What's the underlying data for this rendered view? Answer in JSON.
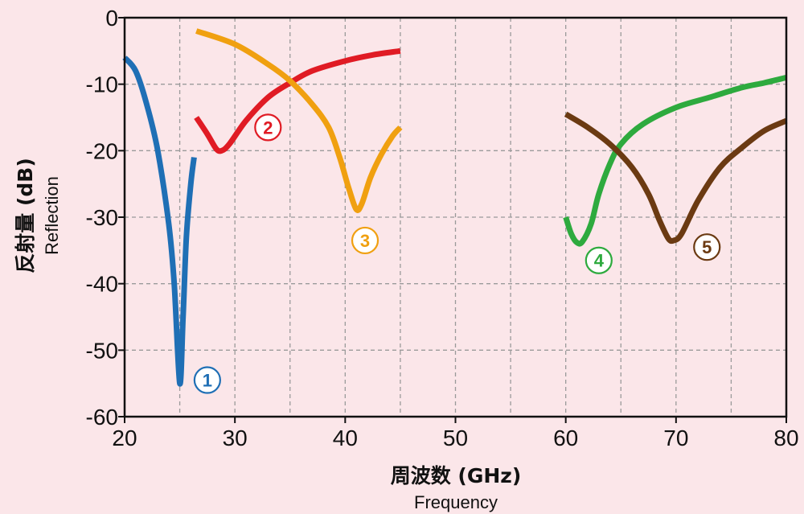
{
  "chart_data": {
    "type": "line",
    "title": "",
    "xlabel": "周波数 (GHz)",
    "xlabel_sub": "Frequency",
    "ylabel": "反射量 (dB)",
    "ylabel_sub": "Reflection",
    "xlim": [
      20,
      80
    ],
    "ylim": [
      -60,
      0
    ],
    "x_ticks": [
      20,
      30,
      40,
      50,
      60,
      70,
      80
    ],
    "y_ticks": [
      0,
      -10,
      -20,
      -30,
      -40,
      -50,
      -60
    ],
    "grid": true,
    "grid_style": "dashed",
    "series": [
      {
        "name": "①",
        "color": "#1f6fb5",
        "x": [
          20,
          21,
          22,
          23,
          24,
          24.5,
          25,
          25.3,
          25.6,
          26,
          26.3
        ],
        "y": [
          -6,
          -8,
          -13,
          -20,
          -31,
          -40,
          -55,
          -45,
          -33,
          -25,
          -21
        ],
        "label_at": [
          27.5,
          -54.5
        ]
      },
      {
        "name": "②",
        "color": "#e01b24",
        "x": [
          26.5,
          27.5,
          28.3,
          28.8,
          29.5,
          31,
          33,
          35,
          37,
          40,
          42.5,
          45
        ],
        "y": [
          -15,
          -17.5,
          -19.7,
          -20,
          -19,
          -15.5,
          -12,
          -9.8,
          -8,
          -6.5,
          -5.6,
          -5
        ],
        "label_at": [
          33,
          -16.5
        ]
      },
      {
        "name": "③",
        "color": "#f0a010",
        "x": [
          26.5,
          30,
          33,
          35,
          37,
          38.5,
          39.5,
          40.3,
          41,
          41.5,
          42.3,
          43.3,
          44.3,
          45
        ],
        "y": [
          -2,
          -4,
          -7,
          -9.5,
          -13,
          -16.5,
          -21,
          -25.5,
          -28.8,
          -28,
          -24,
          -20.5,
          -17.8,
          -16.5
        ],
        "label_at": [
          41.8,
          -33.5
        ]
      },
      {
        "name": "④",
        "color": "#2eaa3e",
        "x": [
          60,
          60.5,
          61,
          61.5,
          62.3,
          63,
          64,
          65,
          67,
          70,
          73,
          76,
          78,
          80
        ],
        "y": [
          -30,
          -32.5,
          -33.8,
          -33.7,
          -31,
          -26.5,
          -22,
          -19,
          -16,
          -13.5,
          -12,
          -10.5,
          -9.8,
          -9
        ],
        "label_at": [
          63,
          -36.5
        ]
      },
      {
        "name": "⑤",
        "color": "#6b3a12",
        "x": [
          60,
          62,
          64,
          66,
          67.5,
          68.5,
          69.3,
          69.8,
          70.5,
          72,
          74,
          76,
          78,
          80
        ],
        "y": [
          -14.5,
          -16.5,
          -19,
          -22.5,
          -26.5,
          -30.5,
          -33.2,
          -33.5,
          -32.5,
          -27.5,
          -22.5,
          -19.5,
          -17,
          -15.5
        ],
        "label_at": [
          72.8,
          -34.5
        ]
      }
    ]
  }
}
